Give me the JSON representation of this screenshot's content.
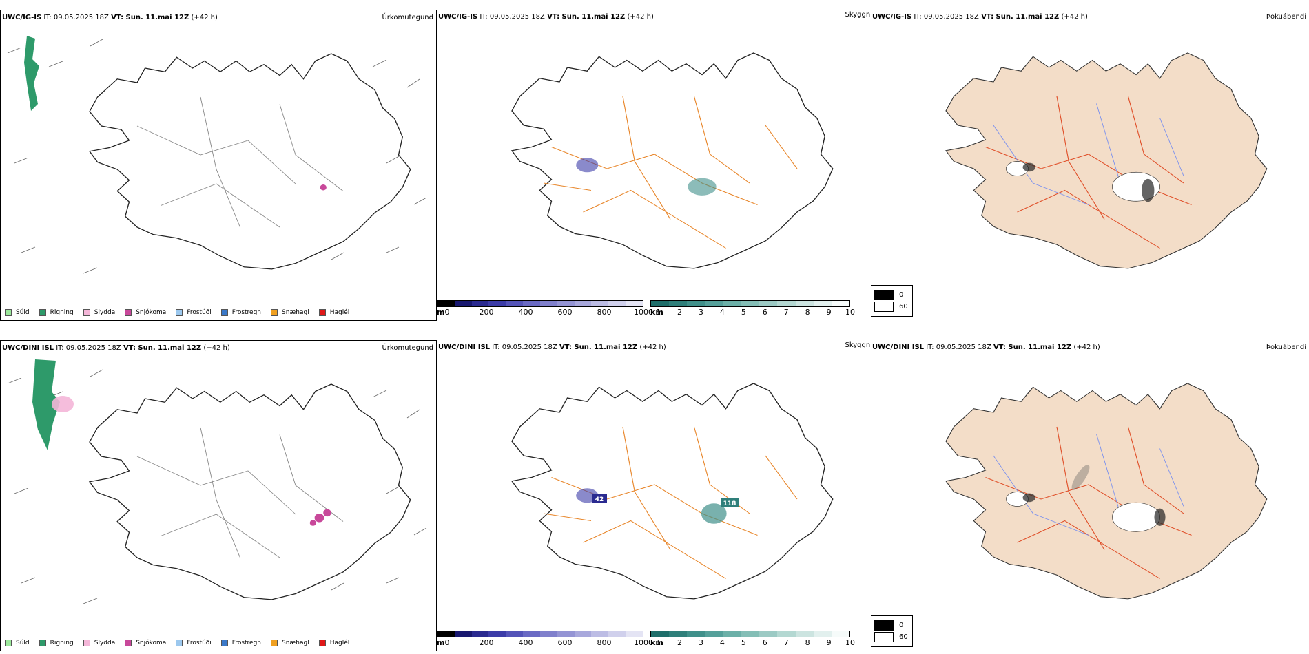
{
  "rows": [
    {
      "model": "UWC/IG-IS",
      "it_label": "IT: 09.05.2025 18Z",
      "vt_label": "VT: Sun. 11.mai 12Z",
      "lead": "(+42 h)"
    },
    {
      "model": "UWC/DINI ISL",
      "it_label": "IT: 09.05.2025 18Z",
      "vt_label": "VT: Sun. 11.mai 12Z",
      "lead": "(+42 h)"
    }
  ],
  "panels": {
    "precip_type": "Úrkomutegund",
    "visibility": "Skyggni",
    "fog_index": "Þokuábendi"
  },
  "precip_legend": [
    {
      "label": "Súld",
      "color": "#9be89b"
    },
    {
      "label": "Rigning",
      "color": "#2e9a6a"
    },
    {
      "label": "Slydda",
      "color": "#f4b6d8"
    },
    {
      "label": "Snjókoma",
      "color": "#c8489a"
    },
    {
      "label": "Frostúði",
      "color": "#9cc8ee"
    },
    {
      "label": "Frostregn",
      "color": "#3a78c8"
    },
    {
      "label": "Snæhagl",
      "color": "#f0a020"
    },
    {
      "label": "Haglél",
      "color": "#e01818"
    }
  ],
  "cloud_base_bar": {
    "unit": "m",
    "ticks": [
      "0",
      "200",
      "400",
      "600",
      "800",
      "1000"
    ],
    "colors": [
      "#000000",
      "#181870",
      "#2a2a90",
      "#3c3ca8",
      "#5454b8",
      "#6a6ac4",
      "#8080cc",
      "#9494d4",
      "#a8a8dc",
      "#bcbce4",
      "#d0d0ec",
      "#e4e4f4"
    ]
  },
  "visibility_bar": {
    "unit": "km",
    "ticks": [
      "1",
      "2",
      "3",
      "4",
      "5",
      "6",
      "7",
      "8",
      "9",
      "10"
    ],
    "colors": [
      "#1e6e6a",
      "#2f7f7a",
      "#40908a",
      "#55a09a",
      "#6cb0a8",
      "#84beb6",
      "#9ccac4",
      "#b4d8d2",
      "#cce4e0",
      "#e2f0ee",
      "#f6fbfa"
    ]
  },
  "fog_legend": {
    "items": [
      {
        "label": "0",
        "color": "#000000"
      },
      {
        "label": "60",
        "color": "#ffffff"
      }
    ]
  },
  "map_labels": {
    "top_a": "42",
    "top_b": "118"
  },
  "colors": {
    "roads": "#e8862a",
    "fog_land": "#f3ddc8",
    "fog_roads": "#e0502a",
    "rivers": "#7a90ee"
  }
}
